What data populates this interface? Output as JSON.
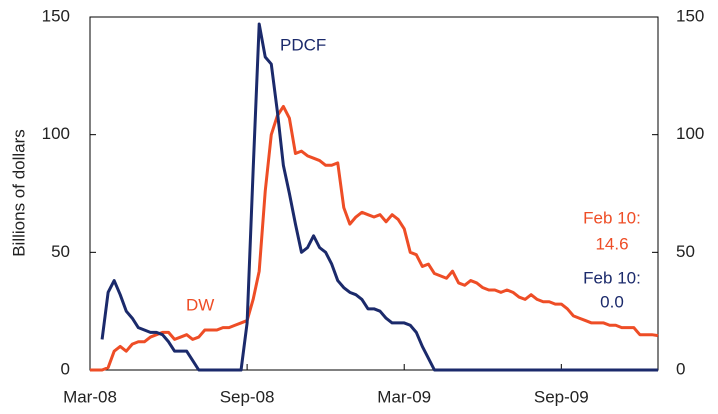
{
  "chart_data": {
    "type": "line",
    "y_label": "Billions of dollars",
    "x": [
      0,
      1,
      2,
      3,
      4,
      5,
      6,
      7,
      8,
      9,
      10,
      11,
      12,
      13,
      14,
      15,
      16,
      17,
      18,
      19,
      20,
      21,
      22,
      23,
      24,
      25,
      26,
      27,
      28,
      29,
      30,
      31,
      32,
      33,
      34,
      35,
      36,
      37,
      38,
      39,
      40,
      41,
      42,
      43,
      44,
      45,
      46,
      47,
      48,
      49,
      50,
      51,
      52,
      53,
      54,
      55,
      56,
      57,
      58,
      59,
      60,
      61,
      62,
      63,
      64,
      65,
      66,
      67,
      68,
      69,
      70,
      71,
      72,
      73,
      74,
      75,
      76,
      77,
      78,
      79,
      80,
      81,
      82,
      83,
      84,
      85,
      86,
      87,
      88,
      89,
      90,
      91,
      92,
      93,
      94
    ],
    "xlim": [
      0,
      94
    ],
    "xticks": [
      {
        "value": 0,
        "label": "Mar-08"
      },
      {
        "value": 26,
        "label": "Sep-08"
      },
      {
        "value": 52,
        "label": "Mar-09"
      },
      {
        "value": 78,
        "label": "Sep-09"
      }
    ],
    "ylim": [
      0,
      150
    ],
    "yticks": [
      0,
      50,
      100,
      150
    ],
    "y2lim": [
      0,
      150
    ],
    "y2ticks": [
      0,
      50,
      100,
      150
    ],
    "series": [
      {
        "name": "DW",
        "color": "#ee4d26",
        "values": [
          0,
          0,
          0,
          1,
          8,
          10,
          8,
          11,
          12,
          12,
          14,
          15,
          16,
          16,
          13,
          14,
          15,
          13,
          14,
          17,
          17,
          17,
          18,
          18,
          19,
          20,
          21,
          30,
          42,
          76,
          100,
          108,
          112,
          107,
          92,
          93,
          91,
          90,
          89,
          87,
          87,
          88,
          69,
          62,
          65,
          67,
          66,
          65,
          66,
          63,
          66,
          64,
          60,
          50,
          49,
          44,
          45,
          41,
          40,
          39,
          42,
          37,
          36,
          38,
          37,
          35,
          34,
          34,
          33,
          34,
          33,
          31,
          30,
          32,
          30,
          29,
          29,
          28,
          28,
          26,
          23,
          22,
          21,
          20,
          20,
          20,
          19,
          19,
          18,
          18,
          18,
          15,
          15,
          15,
          14.6
        ]
      },
      {
        "name": "PDCF",
        "color": "#1b2a6b",
        "values": [
          null,
          null,
          13,
          33,
          38,
          32,
          25,
          22,
          18,
          17,
          16,
          16,
          15,
          12,
          8,
          8,
          8,
          4,
          0,
          0,
          0,
          0,
          0,
          0,
          0,
          0,
          20,
          85,
          147,
          133,
          130,
          110,
          87,
          75,
          62,
          50,
          52,
          57,
          52,
          50,
          45,
          38,
          35,
          33,
          32,
          30,
          26,
          26,
          25,
          22,
          20,
          20,
          20,
          19,
          16,
          10,
          5,
          0,
          0,
          0,
          0,
          0,
          0,
          0,
          0,
          0,
          0,
          0,
          0,
          0,
          0,
          0,
          0,
          0,
          0,
          0,
          0,
          0,
          0,
          0,
          0,
          0,
          0,
          0,
          0,
          0,
          0,
          0,
          0,
          0,
          0,
          0,
          0,
          0,
          0
        ]
      }
    ],
    "annotations": [
      {
        "text": "Feb 10:",
        "color": "#ee4d26"
      },
      {
        "text": "14.6",
        "color": "#ee4d26"
      },
      {
        "text": "Feb 10:",
        "color": "#1b2a6b"
      },
      {
        "text": "0.0",
        "color": "#1b2a6b"
      }
    ]
  }
}
